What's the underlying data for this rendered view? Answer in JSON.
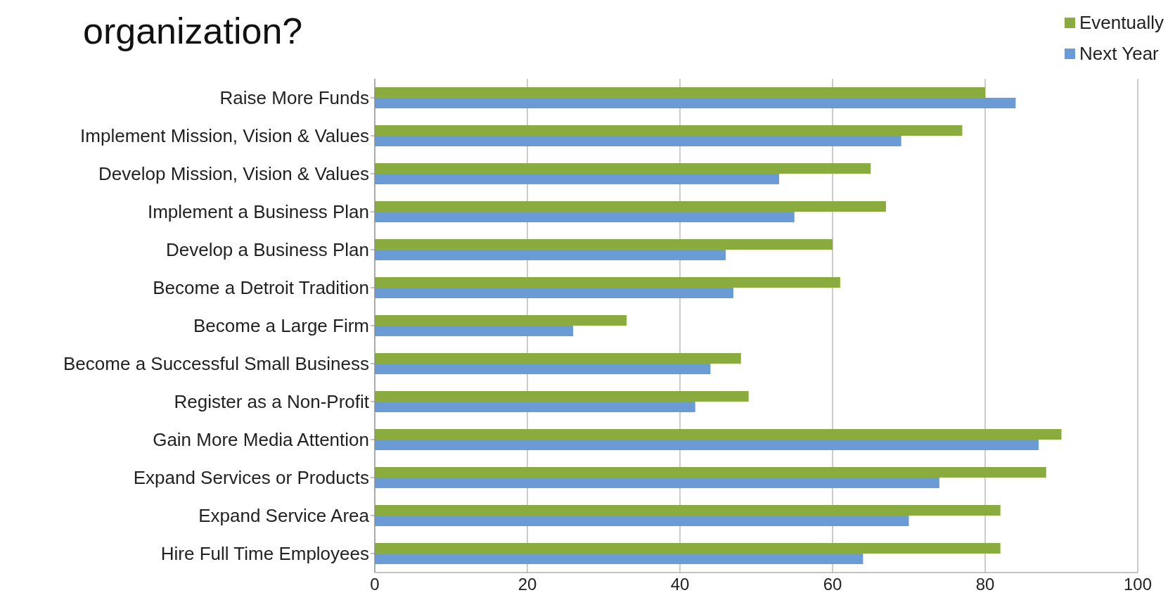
{
  "chart_data": {
    "type": "bar",
    "orientation": "horizontal",
    "title": "organization?",
    "categories": [
      "Raise More Funds",
      "Implement Mission, Vision & Values",
      "Develop Mission, Vision & Values",
      "Implement a Business Plan",
      "Develop a Business Plan",
      "Become a Detroit Tradition",
      "Become a Large Firm",
      "Become a Successful Small Business",
      "Register as a Non-Profit",
      "Gain More Media Attention",
      "Expand Services or Products",
      "Expand Service Area",
      "Hire Full Time Employees"
    ],
    "series": [
      {
        "name": "Eventually",
        "color": "#8aac3e",
        "values": [
          80,
          77,
          65,
          67,
          60,
          61,
          33,
          48,
          49,
          90,
          88,
          82,
          82
        ]
      },
      {
        "name": "Next Year",
        "color": "#6a9bd4",
        "values": [
          84,
          69,
          53,
          55,
          46,
          47,
          26,
          44,
          42,
          87,
          74,
          70,
          64
        ]
      }
    ],
    "xlim": [
      0,
      100
    ],
    "xticks": [
      0,
      20,
      40,
      60,
      80,
      100
    ],
    "grid": "x",
    "legend": "top right"
  }
}
